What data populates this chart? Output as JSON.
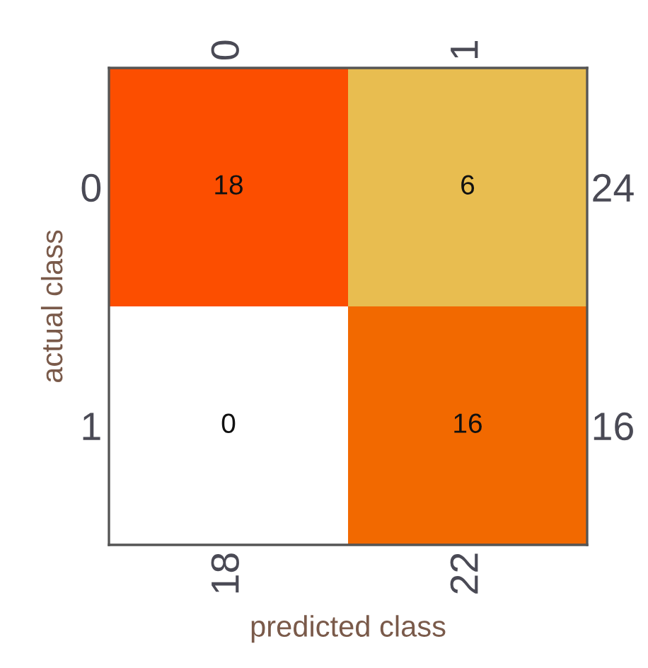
{
  "chart_data": {
    "type": "heatmap",
    "xlabel": "predicted class",
    "ylabel": "actual class",
    "categories": [
      "0",
      "1"
    ],
    "annotations": [
      "18",
      "22"
    ],
    "y_categories": [
      "0",
      "1"
    ],
    "y2_categories": [
      "24",
      "16"
    ],
    "cells": [
      [
        18,
        6
      ],
      [
        0,
        16
      ]
    ],
    "colors": [
      [
        "#fc4e00",
        "#e8bd50"
      ],
      [
        "#ffffff",
        "#f26900"
      ]
    ],
    "data_labels": true
  }
}
